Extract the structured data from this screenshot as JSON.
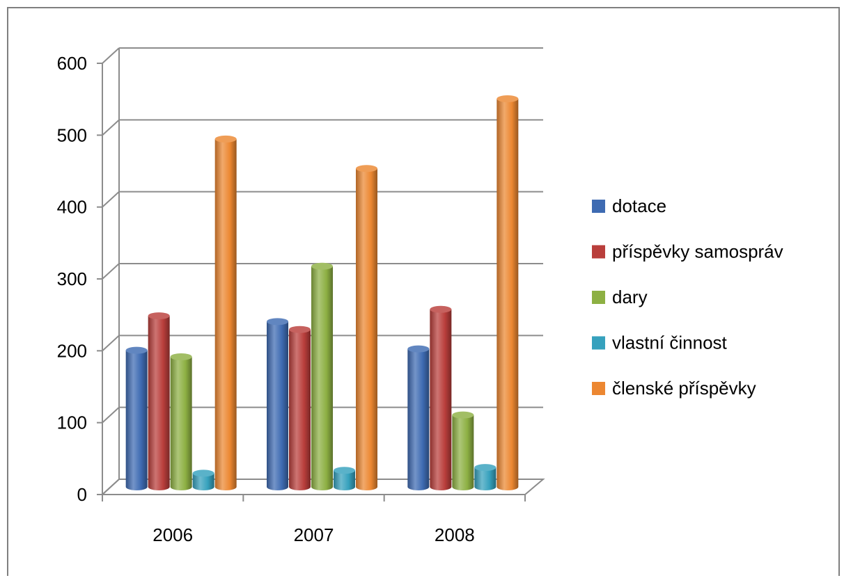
{
  "chart_data": {
    "type": "bar",
    "categories": [
      "2006",
      "2007",
      "2008"
    ],
    "series": [
      {
        "name": "dotace",
        "color": "#3e6bb2",
        "values": [
          190,
          230,
          192
        ]
      },
      {
        "name": "příspěvky samospráv",
        "color": "#b93e3b",
        "values": [
          238,
          219,
          247
        ]
      },
      {
        "name": "dary",
        "color": "#8db043",
        "values": [
          181,
          307,
          100
        ]
      },
      {
        "name": "vlastní činnost",
        "color": "#36a1bd",
        "values": [
          19,
          23,
          27
        ]
      },
      {
        "name": "členské příspěvky",
        "color": "#ec8731",
        "values": [
          484,
          443,
          540
        ]
      }
    ],
    "yticks": [
      "0",
      "100",
      "200",
      "300",
      "400",
      "500",
      "600"
    ],
    "ylim": [
      0,
      600
    ],
    "grid": true,
    "legend_position": "right",
    "style": "3d-cylinder"
  }
}
